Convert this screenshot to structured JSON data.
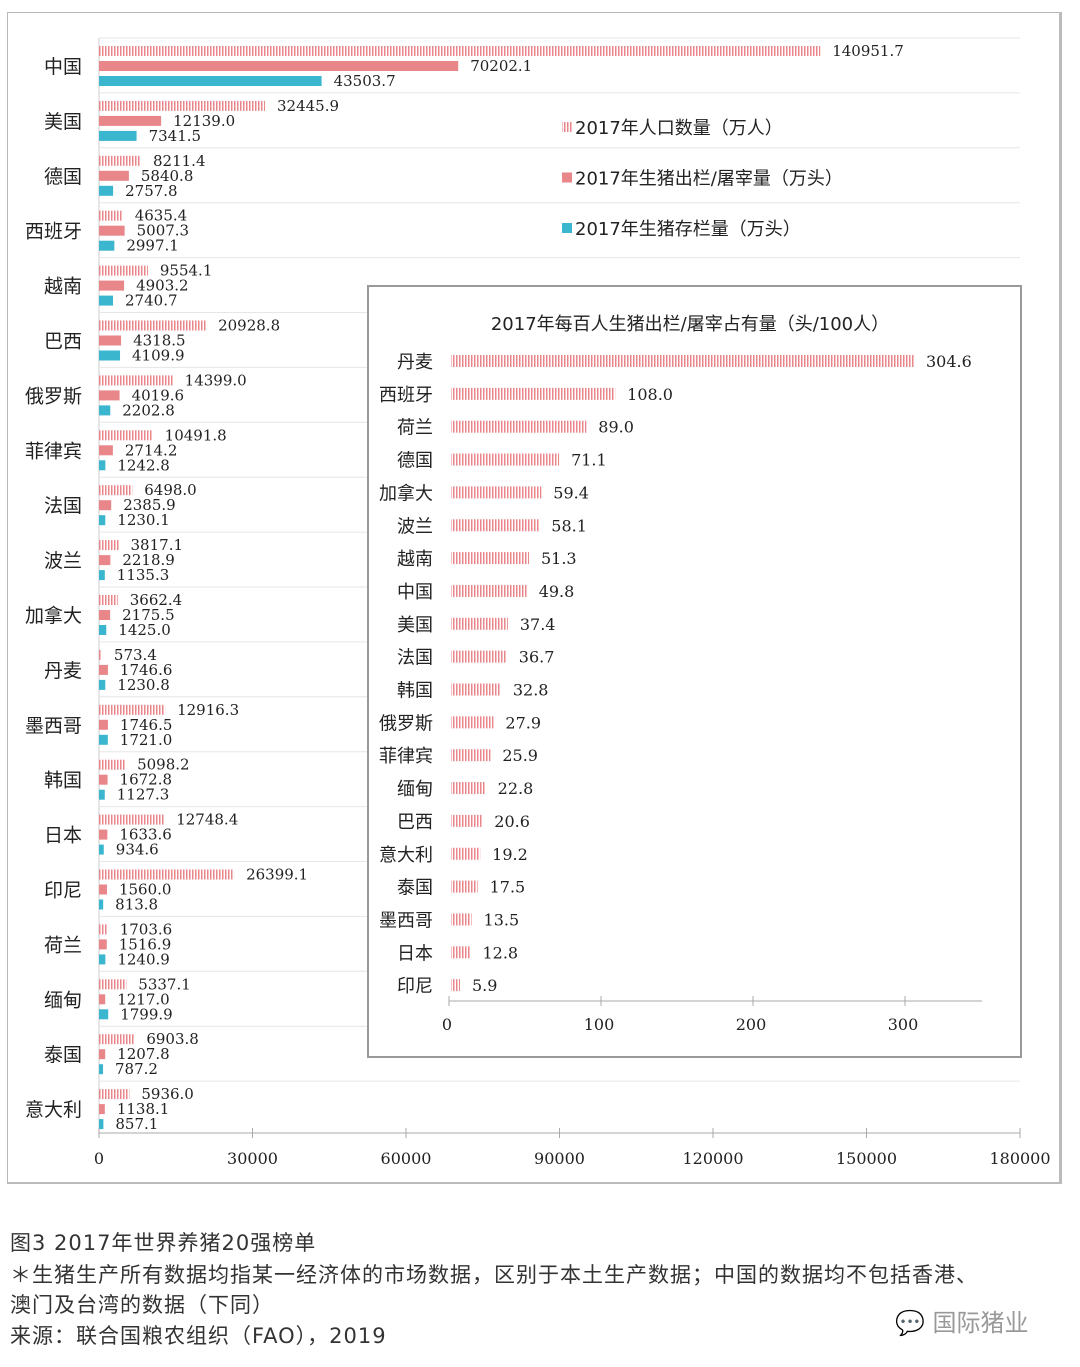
{
  "chart_data": [
    {
      "type": "bar",
      "orientation": "horizontal",
      "categories": [
        "中国",
        "美国",
        "德国",
        "西班牙",
        "越南",
        "巴西",
        "俄罗斯",
        "菲律宾",
        "法国",
        "波兰",
        "加拿大",
        "丹麦",
        "墨西哥",
        "韩国",
        "日本",
        "印尼",
        "荷兰",
        "缅甸",
        "泰国",
        "意大利"
      ],
      "series": [
        {
          "name": "2017年人口数量（万人）",
          "color": "#e8868a",
          "pattern": "vertical-stripes",
          "values": [
            140951.7,
            32445.9,
            8211.4,
            4635.4,
            9554.1,
            20928.8,
            14399.0,
            10491.8,
            6498.0,
            3817.1,
            3662.4,
            573.4,
            12916.3,
            5098.2,
            12748.4,
            26399.1,
            1703.6,
            5337.1,
            6903.8,
            5936.0
          ]
        },
        {
          "name": "2017年生猪出栏/屠宰量（万头）",
          "color": "#e8868a",
          "values": [
            70202.1,
            12139.0,
            5840.8,
            5007.3,
            4903.2,
            4318.5,
            4019.6,
            2714.2,
            2385.9,
            2218.9,
            2175.5,
            1746.6,
            1746.5,
            1672.8,
            1633.6,
            1560.0,
            1516.9,
            1217.0,
            1207.8,
            1138.1
          ]
        },
        {
          "name": "2017年生猪存栏量（万头）",
          "color": "#3bb6cf",
          "values": [
            43503.7,
            7341.5,
            2757.8,
            2997.1,
            2740.7,
            4109.9,
            2202.8,
            1242.8,
            1230.1,
            1135.3,
            1425.0,
            1230.8,
            1721.0,
            1127.3,
            934.6,
            813.8,
            1240.9,
            1799.9,
            787.2,
            857.1
          ]
        }
      ],
      "xlim": [
        0,
        180000
      ],
      "xticks": [
        "0",
        "30000",
        "60000",
        "90000",
        "120000",
        "150000",
        "180000"
      ],
      "legend": "right, upper",
      "grid": "horizontal separators between categories"
    },
    {
      "type": "bar",
      "orientation": "horizontal",
      "title": "2017年每百人生猪出栏/屠宰占有量（头/100人）",
      "categories": [
        "丹麦",
        "西班牙",
        "荷兰",
        "德国",
        "加拿大",
        "波兰",
        "越南",
        "中国",
        "美国",
        "法国",
        "韩国",
        "俄罗斯",
        "菲律宾",
        "缅甸",
        "巴西",
        "意大利",
        "泰国",
        "墨西哥",
        "日本",
        "印尼"
      ],
      "values": [
        304.6,
        108.0,
        89.0,
        71.1,
        59.4,
        58.1,
        51.3,
        49.8,
        37.4,
        36.7,
        32.8,
        27.9,
        25.9,
        22.8,
        20.6,
        19.2,
        17.5,
        13.5,
        12.8,
        5.9
      ],
      "labels": [
        "304.6",
        "108.0",
        "89.0",
        "71.1",
        "59.4",
        "58.1",
        "51.3",
        "49.8",
        "37.4",
        "36.7",
        "32.8",
        "27.9",
        "25.9",
        "22.8",
        "20.6",
        "19.2",
        "17.5",
        "13.5",
        "12.8",
        "5.9"
      ],
      "color": "#e8868a",
      "pattern": "vertical-stripes",
      "xlim": [
        0,
        350
      ],
      "xticks": [
        "0",
        "100",
        "200",
        "300"
      ],
      "grid": false
    }
  ],
  "caption": {
    "title": "图3 2017年世界养猪20强榜单",
    "note_line1": "＊生猪生产所有数据均指某一经济体的市场数据，区别于本土生产数据；中国的数据均不包括香港、",
    "note_line2": "澳门及台湾的数据（下同）",
    "source": "来源：联合国粮农组织（FAO），2019",
    "watermark": "国际猪业"
  }
}
